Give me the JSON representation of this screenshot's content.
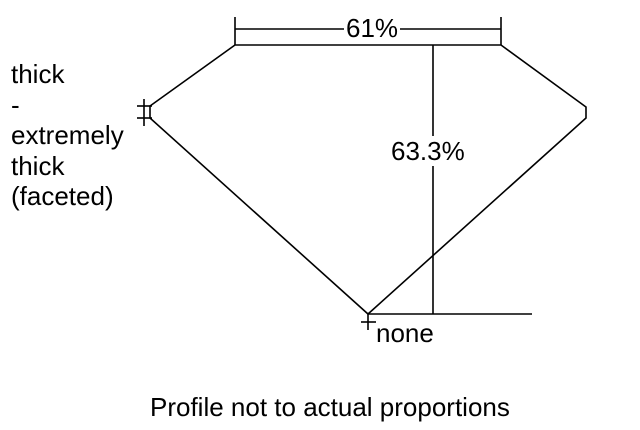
{
  "table_label": "61%",
  "depth_label": "63.3%",
  "girdle_label": [
    "thick",
    "-",
    "extremely",
    "thick",
    "(faceted)"
  ],
  "culet_label": "none",
  "caption": "Profile not to actual proportions"
}
